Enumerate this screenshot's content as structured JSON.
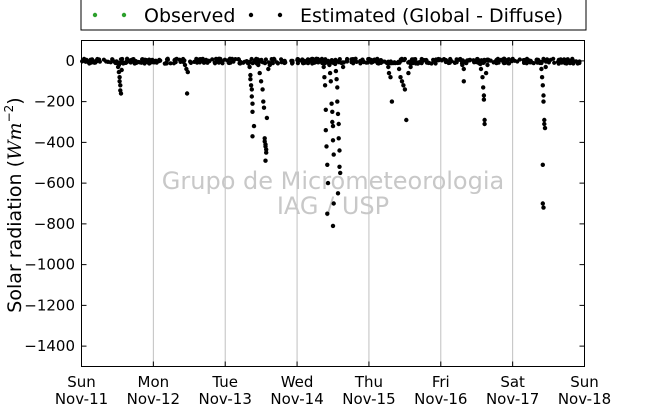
{
  "chart_data": {
    "type": "scatter",
    "ylabel_parts": [
      "Solar radiation (",
      "Wm",
      "−2",
      ")"
    ],
    "ylim": [
      -1500,
      100
    ],
    "yticks": [
      0,
      -200,
      -400,
      -600,
      -800,
      -1000,
      -1200,
      -1400
    ],
    "xlim": [
      0,
      7
    ],
    "xticks": [
      {
        "x": 0,
        "day": "Sun",
        "date": "Nov-11"
      },
      {
        "x": 1,
        "day": "Mon",
        "date": "Nov-12"
      },
      {
        "x": 2,
        "day": "Tue",
        "date": "Nov-13"
      },
      {
        "x": 3,
        "day": "Wed",
        "date": "Nov-14"
      },
      {
        "x": 4,
        "day": "Thu",
        "date": "Nov-15"
      },
      {
        "x": 5,
        "day": "Fri",
        "date": "Nov-16"
      },
      {
        "x": 6,
        "day": "Sat",
        "date": "Nov-17"
      },
      {
        "x": 7,
        "day": "Sun",
        "date": "Nov-18"
      }
    ],
    "grid": "vertical",
    "legend_position": "top",
    "series": [
      {
        "name": "Observed",
        "color": "#2ca02c",
        "points": []
      },
      {
        "name": "Estimated (Global - Diffuse)",
        "color": "#000000",
        "points": [
          [
            0.5,
            -10
          ],
          [
            0.51,
            -30
          ],
          [
            0.52,
            -55
          ],
          [
            0.53,
            -80
          ],
          [
            0.53,
            -100
          ],
          [
            0.54,
            -120
          ],
          [
            0.54,
            -145
          ],
          [
            0.55,
            -160
          ],
          [
            0.52,
            -20
          ],
          [
            0.56,
            -45
          ],
          [
            1.42,
            -5
          ],
          [
            1.44,
            -20
          ],
          [
            1.46,
            -40
          ],
          [
            1.48,
            -55
          ],
          [
            1.47,
            -160
          ],
          [
            2.33,
            -10
          ],
          [
            2.34,
            -30
          ],
          [
            2.35,
            -70
          ],
          [
            2.35,
            -90
          ],
          [
            2.36,
            -120
          ],
          [
            2.37,
            -140
          ],
          [
            2.37,
            -175
          ],
          [
            2.38,
            -210
          ],
          [
            2.38,
            -250
          ],
          [
            2.4,
            -320
          ],
          [
            2.38,
            -370
          ],
          [
            2.45,
            -5
          ],
          [
            2.46,
            -20
          ],
          [
            2.48,
            -60
          ],
          [
            2.5,
            -100
          ],
          [
            2.52,
            -140
          ],
          [
            2.53,
            -200
          ],
          [
            2.54,
            -230
          ],
          [
            2.55,
            -380
          ],
          [
            2.55,
            -395
          ],
          [
            2.56,
            -410
          ],
          [
            2.56,
            -420
          ],
          [
            2.57,
            -435
          ],
          [
            2.57,
            -450
          ],
          [
            2.56,
            -490
          ],
          [
            2.58,
            -280
          ],
          [
            2.6,
            -40
          ],
          [
            2.62,
            -20
          ],
          [
            3.35,
            -10
          ],
          [
            3.37,
            -30
          ],
          [
            3.38,
            -80
          ],
          [
            3.39,
            -120
          ],
          [
            3.4,
            -240
          ],
          [
            3.4,
            -340
          ],
          [
            3.41,
            -420
          ],
          [
            3.42,
            -510
          ],
          [
            3.43,
            -600
          ],
          [
            3.42,
            -750
          ],
          [
            3.45,
            -20
          ],
          [
            3.46,
            -60
          ],
          [
            3.47,
            -100
          ],
          [
            3.48,
            -210
          ],
          [
            3.49,
            -250
          ],
          [
            3.49,
            -300
          ],
          [
            3.5,
            -320
          ],
          [
            3.5,
            -390
          ],
          [
            3.51,
            -460
          ],
          [
            3.51,
            -700
          ],
          [
            3.5,
            -810
          ],
          [
            3.53,
            -15
          ],
          [
            3.54,
            -50
          ],
          [
            3.55,
            -90
          ],
          [
            3.56,
            -130
          ],
          [
            3.56,
            -200
          ],
          [
            3.57,
            -260
          ],
          [
            3.58,
            -310
          ],
          [
            3.58,
            -380
          ],
          [
            3.59,
            -440
          ],
          [
            3.59,
            -520
          ],
          [
            3.6,
            -550
          ],
          [
            3.57,
            -650
          ],
          [
            3.62,
            -10
          ],
          [
            3.64,
            -30
          ],
          [
            4.25,
            -10
          ],
          [
            4.27,
            -30
          ],
          [
            4.28,
            -60
          ],
          [
            4.3,
            -80
          ],
          [
            4.32,
            -200
          ],
          [
            4.4,
            -10
          ],
          [
            4.42,
            -40
          ],
          [
            4.44,
            -80
          ],
          [
            4.46,
            -100
          ],
          [
            4.48,
            -120
          ],
          [
            4.5,
            -140
          ],
          [
            4.52,
            -290
          ],
          [
            4.55,
            -60
          ],
          [
            4.58,
            -30
          ],
          [
            4.6,
            -10
          ],
          [
            5.3,
            -20
          ],
          [
            5.32,
            -40
          ],
          [
            5.32,
            -100
          ],
          [
            5.55,
            -15
          ],
          [
            5.56,
            -40
          ],
          [
            5.58,
            -80
          ],
          [
            5.59,
            -130
          ],
          [
            5.6,
            -170
          ],
          [
            5.6,
            -190
          ],
          [
            5.61,
            -290
          ],
          [
            5.61,
            -310
          ],
          [
            5.63,
            -60
          ],
          [
            5.65,
            -20
          ],
          [
            6.38,
            -10
          ],
          [
            6.4,
            -40
          ],
          [
            6.41,
            -80
          ],
          [
            6.42,
            -120
          ],
          [
            6.43,
            -170
          ],
          [
            6.43,
            -200
          ],
          [
            6.44,
            -290
          ],
          [
            6.44,
            -310
          ],
          [
            6.45,
            -330
          ],
          [
            6.42,
            -510
          ],
          [
            6.42,
            -700
          ],
          [
            6.43,
            -720
          ],
          [
            6.46,
            -30
          ]
        ]
      }
    ],
    "watermark": [
      "Grupo de Micrometeorologia",
      "IAG / USP"
    ]
  }
}
